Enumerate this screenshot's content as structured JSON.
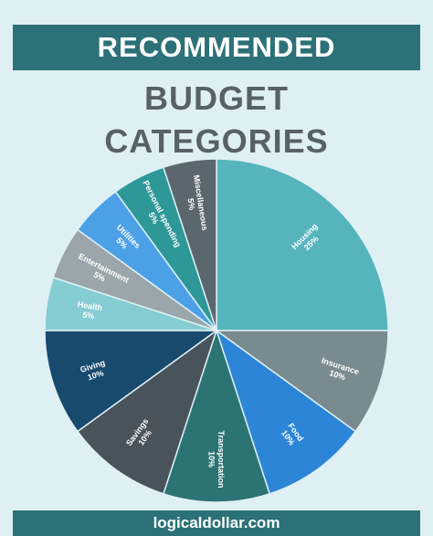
{
  "header": {
    "banner_text": "RECOMMENDED"
  },
  "footer": {
    "site": "logicaldollar.com"
  },
  "chart_data": {
    "type": "pie",
    "title": "BUDGET CATEGORIES",
    "title_lines": [
      "BUDGET",
      "CATEGORIES"
    ],
    "labels_show_percent": true,
    "slices": [
      {
        "name": "Housing",
        "value": 25,
        "color": "#56b4bd"
      },
      {
        "name": "Insurance",
        "value": 10,
        "color": "#798b90"
      },
      {
        "name": "Food",
        "value": 10,
        "color": "#2c85d6"
      },
      {
        "name": "Transportation",
        "value": 10,
        "color": "#2b7473"
      },
      {
        "name": "Savings",
        "value": 10,
        "color": "#48535c"
      },
      {
        "name": "Giving",
        "value": 10,
        "color": "#184a6e"
      },
      {
        "name": "Health",
        "value": 5,
        "color": "#86cdd3"
      },
      {
        "name": "Entertainment",
        "value": 5,
        "color": "#9aa6ab"
      },
      {
        "name": "Utilities",
        "value": 5,
        "color": "#4ca1e6"
      },
      {
        "name": "Personal spending",
        "value": 5,
        "color": "#2e9898"
      },
      {
        "name": "Miscellaneous",
        "value": 5,
        "color": "#5b676e"
      }
    ]
  }
}
